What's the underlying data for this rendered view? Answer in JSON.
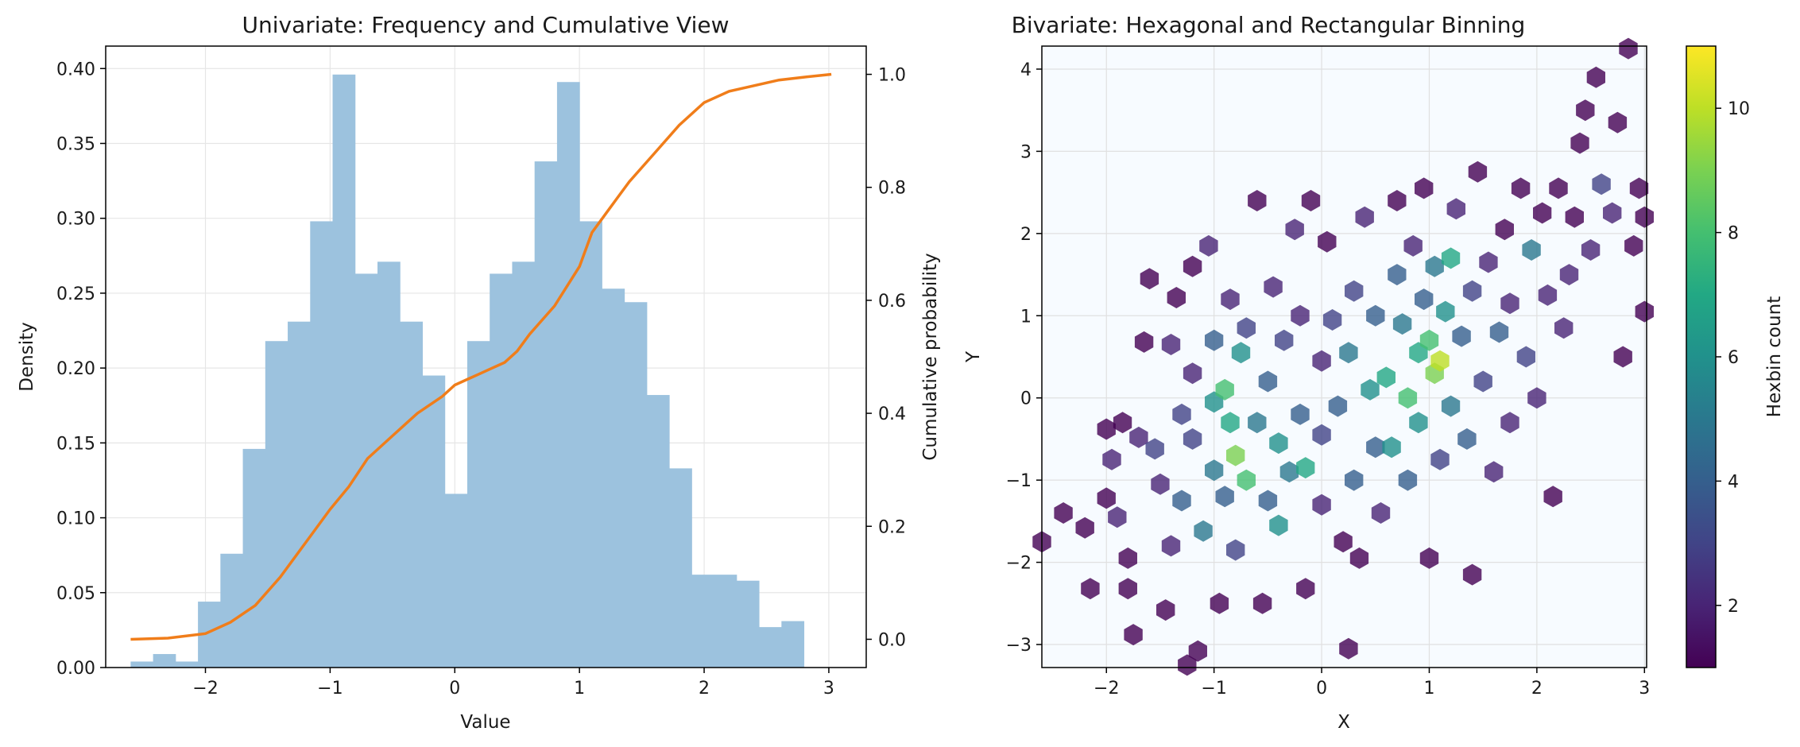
{
  "chart_data": [
    {
      "type": "bar",
      "title": "Univariate: Frequency and Cumulative View",
      "xlabel": "Value",
      "ylabel": "Density",
      "y2label": "Cumulative probability",
      "xlim": [
        -2.8,
        3.3
      ],
      "ylim": [
        0,
        0.415
      ],
      "y2lim": [
        -0.05,
        1.05
      ],
      "xticks": [
        -2,
        -1,
        0,
        1,
        2,
        3
      ],
      "xtick_labels": [
        "−2",
        "−1",
        "0",
        "1",
        "2",
        "3"
      ],
      "yticks": [
        0.0,
        0.05,
        0.1,
        0.15,
        0.2,
        0.25,
        0.3,
        0.35,
        0.4
      ],
      "ytick_labels": [
        "0.00",
        "0.05",
        "0.10",
        "0.15",
        "0.20",
        "0.25",
        "0.30",
        "0.35",
        "0.40"
      ],
      "y2ticks": [
        0.0,
        0.2,
        0.4,
        0.6,
        0.8,
        1.0
      ],
      "y2tick_labels": [
        "0.0",
        "0.2",
        "0.4",
        "0.6",
        "0.8",
        "1.0"
      ],
      "grid": true,
      "bar_color": "#9cc2de",
      "line_color": "#f07d1a",
      "bins": {
        "left": [
          -2.6,
          -2.42,
          -2.24,
          -2.06,
          -1.88,
          -1.7,
          -1.52,
          -1.34,
          -1.16,
          -0.98,
          -0.8,
          -0.62,
          -0.44,
          -0.26,
          -0.08,
          0.1,
          0.28,
          0.46,
          0.64,
          0.82,
          1.0,
          1.18,
          1.36,
          1.54,
          1.72,
          1.9,
          2.08,
          2.26,
          2.44,
          2.62,
          2.8
        ],
        "width": 0.18,
        "density": [
          0.004,
          0.009,
          0.004,
          0.044,
          0.076,
          0.146,
          0.218,
          0.231,
          0.298,
          0.396,
          0.263,
          0.271,
          0.231,
          0.195,
          0.116,
          0.218,
          0.263,
          0.271,
          0.338,
          0.391,
          0.298,
          0.253,
          0.244,
          0.182,
          0.133,
          0.062,
          0.062,
          0.058,
          0.027,
          0.031,
          0.0
        ]
      },
      "cumulative": {
        "x": [
          -2.6,
          -2.3,
          -2.0,
          -1.8,
          -1.6,
          -1.4,
          -1.2,
          -1.0,
          -0.85,
          -0.7,
          -0.5,
          -0.3,
          -0.1,
          0.0,
          0.1,
          0.2,
          0.3,
          0.4,
          0.5,
          0.6,
          0.8,
          1.0,
          1.1,
          1.2,
          1.3,
          1.4,
          1.6,
          1.8,
          2.0,
          2.2,
          2.4,
          2.6,
          2.8,
          3.02
        ],
        "y": [
          0.0,
          0.002,
          0.01,
          0.03,
          0.06,
          0.11,
          0.17,
          0.23,
          0.27,
          0.32,
          0.36,
          0.4,
          0.43,
          0.45,
          0.46,
          0.47,
          0.48,
          0.49,
          0.51,
          0.54,
          0.59,
          0.66,
          0.72,
          0.75,
          0.78,
          0.81,
          0.86,
          0.91,
          0.95,
          0.97,
          0.98,
          0.99,
          0.995,
          1.0
        ]
      }
    },
    {
      "type": "heatmap",
      "title": "Bivariate: Hexagonal and Rectangular Binning",
      "xlabel": "X",
      "ylabel": "Y",
      "colorbar_label": "Hexbin count",
      "xlim": [
        -2.6,
        3.02
      ],
      "ylim": [
        -3.28,
        4.28
      ],
      "xticks": [
        -2,
        -1,
        0,
        1,
        2,
        3
      ],
      "xtick_labels": [
        "−2",
        "−1",
        "0",
        "1",
        "2",
        "3"
      ],
      "yticks": [
        -3,
        -2,
        -1,
        0,
        1,
        2,
        3,
        4
      ],
      "ytick_labels": [
        "−3",
        "−2",
        "−1",
        "0",
        "1",
        "2",
        "3",
        "4"
      ],
      "colorbar_range": [
        1,
        11
      ],
      "colorbar_ticks": [
        2,
        4,
        6,
        8,
        10
      ],
      "colorbar_tick_labels": [
        "2",
        "4",
        "6",
        "8",
        "10"
      ],
      "colormap": "viridis",
      "hex_alpha": 0.8,
      "grid": true,
      "hex_cells": [
        [
          -2.6,
          -1.75,
          1
        ],
        [
          -2.4,
          -1.4,
          1
        ],
        [
          -2.2,
          -1.58,
          1
        ],
        [
          -2.15,
          -2.32,
          1
        ],
        [
          -2.0,
          -1.22,
          1
        ],
        [
          -2.0,
          -0.38,
          1
        ],
        [
          -1.95,
          -0.75,
          2
        ],
        [
          -1.9,
          -1.45,
          2
        ],
        [
          -1.85,
          -0.3,
          1
        ],
        [
          -1.8,
          -1.95,
          1
        ],
        [
          -1.8,
          -2.32,
          1
        ],
        [
          -1.75,
          -2.88,
          1
        ],
        [
          -1.7,
          -0.48,
          2
        ],
        [
          -1.65,
          0.68,
          1
        ],
        [
          -1.6,
          1.45,
          1
        ],
        [
          -1.55,
          -0.62,
          3
        ],
        [
          -1.5,
          -1.05,
          2
        ],
        [
          -1.45,
          -2.58,
          1
        ],
        [
          -1.4,
          0.65,
          2
        ],
        [
          -1.4,
          -1.8,
          2
        ],
        [
          -1.35,
          1.22,
          1
        ],
        [
          -1.3,
          -0.2,
          3
        ],
        [
          -1.3,
          -1.25,
          4
        ],
        [
          -1.25,
          -3.25,
          1
        ],
        [
          -1.2,
          1.6,
          1
        ],
        [
          -1.2,
          0.3,
          2
        ],
        [
          -1.2,
          -0.5,
          3
        ],
        [
          -1.15,
          -3.08,
          1
        ],
        [
          -1.1,
          -1.62,
          5
        ],
        [
          -1.05,
          1.85,
          2
        ],
        [
          -1.0,
          0.7,
          4
        ],
        [
          -1.0,
          -0.05,
          6
        ],
        [
          -1.0,
          -0.88,
          5
        ],
        [
          -0.95,
          -2.5,
          1
        ],
        [
          -0.9,
          0.1,
          8
        ],
        [
          -0.9,
          -1.2,
          4
        ],
        [
          -0.85,
          1.2,
          2
        ],
        [
          -0.85,
          -0.3,
          7
        ],
        [
          -0.8,
          -0.7,
          9
        ],
        [
          -0.8,
          -1.85,
          3
        ],
        [
          -0.75,
          0.55,
          6
        ],
        [
          -0.7,
          -1.0,
          8
        ],
        [
          -0.7,
          0.85,
          3
        ],
        [
          -0.6,
          2.4,
          1
        ],
        [
          -0.6,
          -0.3,
          5
        ],
        [
          -0.55,
          -2.5,
          1
        ],
        [
          -0.5,
          0.2,
          4
        ],
        [
          -0.5,
          -1.25,
          4
        ],
        [
          -0.45,
          1.35,
          2
        ],
        [
          -0.4,
          -0.55,
          6
        ],
        [
          -0.4,
          -1.55,
          6
        ],
        [
          -0.35,
          0.7,
          3
        ],
        [
          -0.3,
          -0.9,
          5
        ],
        [
          -0.25,
          2.05,
          2
        ],
        [
          -0.2,
          1.0,
          2
        ],
        [
          -0.2,
          -0.2,
          4
        ],
        [
          -0.15,
          -0.85,
          7
        ],
        [
          -0.15,
          -2.32,
          1
        ],
        [
          -0.1,
          2.4,
          1
        ],
        [
          0.0,
          -0.45,
          3
        ],
        [
          0.0,
          0.45,
          2
        ],
        [
          0.0,
          -1.3,
          2
        ],
        [
          0.05,
          1.9,
          1
        ],
        [
          0.1,
          0.95,
          3
        ],
        [
          0.15,
          -0.1,
          4
        ],
        [
          0.2,
          -1.75,
          1
        ],
        [
          0.25,
          0.55,
          5
        ],
        [
          0.25,
          -3.05,
          1
        ],
        [
          0.3,
          -1.0,
          4
        ],
        [
          0.3,
          1.3,
          3
        ],
        [
          0.35,
          -1.95,
          1
        ],
        [
          0.4,
          2.2,
          2
        ],
        [
          0.45,
          0.1,
          6
        ],
        [
          0.5,
          -0.6,
          4
        ],
        [
          0.5,
          1.0,
          4
        ],
        [
          0.55,
          -1.4,
          2
        ],
        [
          0.6,
          0.25,
          7
        ],
        [
          0.65,
          -0.6,
          6
        ],
        [
          0.7,
          1.5,
          4
        ],
        [
          0.7,
          2.4,
          1
        ],
        [
          0.75,
          0.9,
          5
        ],
        [
          0.8,
          0.0,
          8
        ],
        [
          0.8,
          -1.0,
          4
        ],
        [
          0.85,
          1.85,
          2
        ],
        [
          0.9,
          0.55,
          7
        ],
        [
          0.9,
          -0.3,
          6
        ],
        [
          0.95,
          1.2,
          4
        ],
        [
          0.95,
          2.55,
          1
        ],
        [
          1.0,
          0.7,
          8
        ],
        [
          1.0,
          -1.95,
          1
        ],
        [
          1.05,
          0.3,
          9
        ],
        [
          1.05,
          1.6,
          5
        ],
        [
          1.1,
          0.45,
          10
        ],
        [
          1.1,
          -0.75,
          3
        ],
        [
          1.15,
          1.05,
          6
        ],
        [
          1.2,
          1.7,
          7
        ],
        [
          1.2,
          -0.1,
          5
        ],
        [
          1.25,
          2.3,
          2
        ],
        [
          1.3,
          0.75,
          4
        ],
        [
          1.35,
          -0.5,
          4
        ],
        [
          1.4,
          1.3,
          3
        ],
        [
          1.4,
          -2.15,
          1
        ],
        [
          1.45,
          2.75,
          1
        ],
        [
          1.5,
          0.2,
          3
        ],
        [
          1.55,
          1.65,
          2
        ],
        [
          1.6,
          -0.9,
          2
        ],
        [
          1.65,
          0.8,
          4
        ],
        [
          1.7,
          2.05,
          1
        ],
        [
          1.75,
          1.15,
          2
        ],
        [
          1.75,
          -0.3,
          2
        ],
        [
          1.85,
          2.55,
          1
        ],
        [
          1.9,
          0.5,
          3
        ],
        [
          1.95,
          1.8,
          5
        ],
        [
          2.0,
          0.0,
          2
        ],
        [
          2.05,
          2.25,
          1
        ],
        [
          2.1,
          1.25,
          2
        ],
        [
          2.15,
          -1.2,
          1
        ],
        [
          2.2,
          2.55,
          1
        ],
        [
          2.25,
          0.85,
          2
        ],
        [
          2.3,
          1.5,
          2
        ],
        [
          2.35,
          2.2,
          1
        ],
        [
          2.4,
          3.1,
          1
        ],
        [
          2.45,
          3.5,
          1
        ],
        [
          2.5,
          1.8,
          2
        ],
        [
          2.55,
          3.9,
          1
        ],
        [
          2.6,
          2.6,
          3
        ],
        [
          2.7,
          2.25,
          2
        ],
        [
          2.75,
          3.35,
          1
        ],
        [
          2.8,
          0.5,
          1
        ],
        [
          2.85,
          4.25,
          1
        ],
        [
          2.9,
          1.85,
          1
        ],
        [
          2.95,
          2.55,
          1
        ],
        [
          3.0,
          1.05,
          1
        ],
        [
          3.0,
          2.2,
          1
        ]
      ]
    }
  ]
}
